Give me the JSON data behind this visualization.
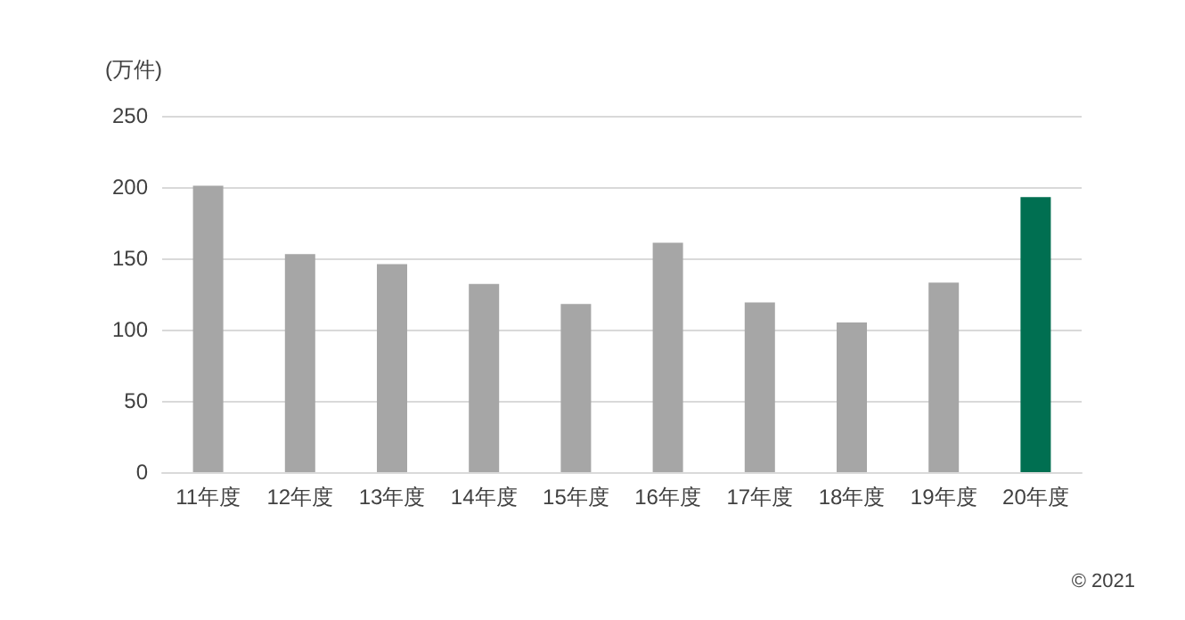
{
  "chart_data": {
    "type": "bar",
    "ylabel": "(万件)",
    "categories": [
      "11年度",
      "12年度",
      "13年度",
      "14年度",
      "15年度",
      "16年度",
      "17年度",
      "18年度",
      "19年度",
      "20年度"
    ],
    "values": [
      201,
      153,
      146,
      132,
      118,
      161,
      119,
      105,
      133,
      193
    ],
    "colors": [
      "#a6a6a6",
      "#a6a6a6",
      "#a6a6a6",
      "#a6a6a6",
      "#a6a6a6",
      "#a6a6a6",
      "#a6a6a6",
      "#a6a6a6",
      "#a6a6a6",
      "#006f51"
    ],
    "ylim": [
      0,
      250
    ],
    "yticks": [
      0,
      50,
      100,
      150,
      200,
      250
    ],
    "grid": "y",
    "annotations": [
      "© 2021"
    ]
  }
}
